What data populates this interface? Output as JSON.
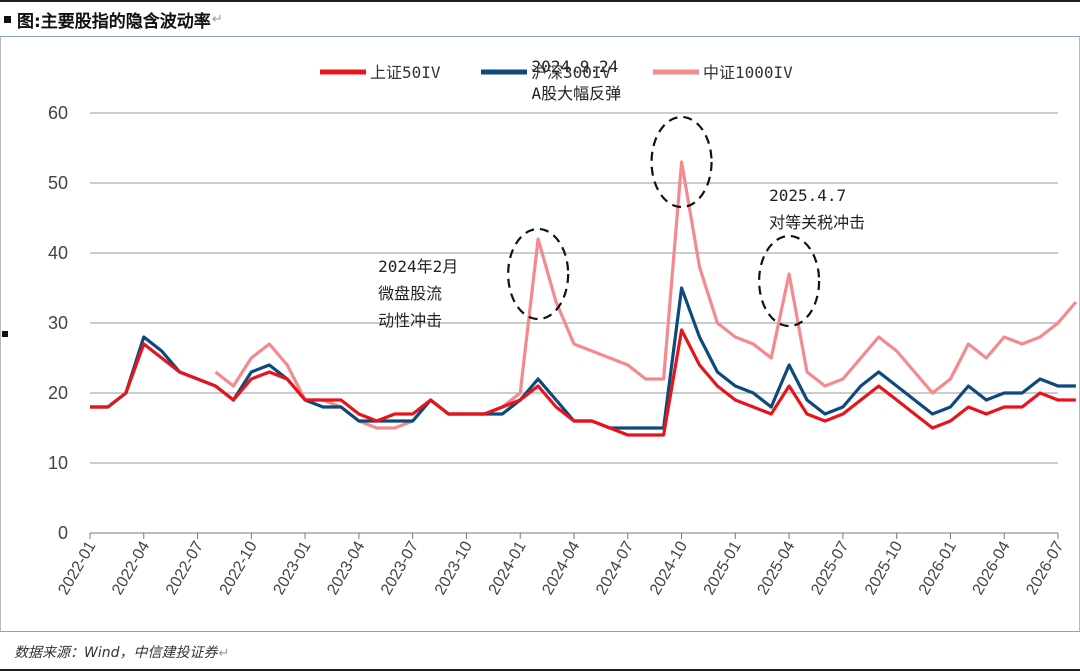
{
  "title": "图:主要股指的隐含波动率",
  "source": "数据来源：Wind，中信建投证券",
  "chart_data": {
    "type": "line",
    "ylim": [
      0,
      60
    ],
    "y_ticks": [
      0,
      10,
      20,
      30,
      40,
      50,
      60
    ],
    "x_tick_labels": [
      "2022-01",
      "2022-04",
      "2022-07",
      "2022-10",
      "2023-01",
      "2023-04",
      "2023-07",
      "2023-10",
      "2024-01",
      "2024-04",
      "2024-07",
      "2024-10",
      "2025-01",
      "2025-04",
      "2025-07",
      "2025-10",
      "2026-01",
      "2026-04",
      "2026-07"
    ],
    "grid": "horizontal",
    "legend_position": "top",
    "series": [
      {
        "name": "上证50IV",
        "color": "#e8141b",
        "width": 3.2,
        "points": [
          [
            "2022-01",
            18
          ],
          [
            "2022-02",
            18
          ],
          [
            "2022-03",
            20
          ],
          [
            "2022-04",
            27
          ],
          [
            "2022-05",
            25
          ],
          [
            "2022-06",
            23
          ],
          [
            "2022-07",
            22
          ],
          [
            "2022-08",
            21
          ],
          [
            "2022-09",
            19
          ],
          [
            "2022-10",
            22
          ],
          [
            "2022-11",
            23
          ],
          [
            "2022-12",
            22
          ],
          [
            "2023-01",
            19
          ],
          [
            "2023-02",
            19
          ],
          [
            "2023-03",
            19
          ],
          [
            "2023-04",
            17
          ],
          [
            "2023-05",
            16
          ],
          [
            "2023-06",
            17
          ],
          [
            "2023-07",
            17
          ],
          [
            "2023-08",
            19
          ],
          [
            "2023-09",
            17
          ],
          [
            "2023-10",
            17
          ],
          [
            "2023-11",
            17
          ],
          [
            "2023-12",
            18
          ],
          [
            "2024-01",
            19
          ],
          [
            "2024-02",
            21
          ],
          [
            "2024-03",
            18
          ],
          [
            "2024-04",
            16
          ],
          [
            "2024-05",
            16
          ],
          [
            "2024-06",
            15
          ],
          [
            "2024-07",
            14
          ],
          [
            "2024-08",
            14
          ],
          [
            "2024-09",
            14
          ],
          [
            "2024-10",
            29
          ],
          [
            "2024-11",
            24
          ],
          [
            "2024-12",
            21
          ],
          [
            "2025-01",
            19
          ],
          [
            "2025-02",
            18
          ],
          [
            "2025-03",
            17
          ],
          [
            "2025-04",
            21
          ],
          [
            "2025-05",
            17
          ],
          [
            "2025-06",
            16
          ],
          [
            "2025-07",
            17
          ],
          [
            "2025-08",
            19
          ],
          [
            "2025-09",
            21
          ],
          [
            "2025-10",
            19
          ],
          [
            "2025-11",
            17
          ],
          [
            "2025-12",
            15
          ],
          [
            "2026-01",
            16
          ],
          [
            "2026-02",
            18
          ],
          [
            "2026-03",
            17
          ],
          [
            "2026-04",
            18
          ],
          [
            "2026-05",
            18
          ],
          [
            "2026-06",
            20
          ],
          [
            "2026-07",
            19
          ],
          [
            "2026-08",
            19
          ]
        ]
      },
      {
        "name": "沪深300IV",
        "color": "#0d4a7c",
        "width": 3.2,
        "points": [
          [
            "2022-01",
            18
          ],
          [
            "2022-02",
            18
          ],
          [
            "2022-03",
            20
          ],
          [
            "2022-04",
            28
          ],
          [
            "2022-05",
            26
          ],
          [
            "2022-06",
            23
          ],
          [
            "2022-07",
            22
          ],
          [
            "2022-08",
            21
          ],
          [
            "2022-09",
            19
          ],
          [
            "2022-10",
            23
          ],
          [
            "2022-11",
            24
          ],
          [
            "2022-12",
            22
          ],
          [
            "2023-01",
            19
          ],
          [
            "2023-02",
            18
          ],
          [
            "2023-03",
            18
          ],
          [
            "2023-04",
            16
          ],
          [
            "2023-05",
            16
          ],
          [
            "2023-06",
            16
          ],
          [
            "2023-07",
            16
          ],
          [
            "2023-08",
            19
          ],
          [
            "2023-09",
            17
          ],
          [
            "2023-10",
            17
          ],
          [
            "2023-11",
            17
          ],
          [
            "2023-12",
            17
          ],
          [
            "2024-01",
            19
          ],
          [
            "2024-02",
            22
          ],
          [
            "2024-03",
            19
          ],
          [
            "2024-04",
            16
          ],
          [
            "2024-05",
            16
          ],
          [
            "2024-06",
            15
          ],
          [
            "2024-07",
            15
          ],
          [
            "2024-08",
            15
          ],
          [
            "2024-09",
            15
          ],
          [
            "2024-10",
            35
          ],
          [
            "2024-11",
            28
          ],
          [
            "2024-12",
            23
          ],
          [
            "2025-01",
            21
          ],
          [
            "2025-02",
            20
          ],
          [
            "2025-03",
            18
          ],
          [
            "2025-04",
            24
          ],
          [
            "2025-05",
            19
          ],
          [
            "2025-06",
            17
          ],
          [
            "2025-07",
            18
          ],
          [
            "2025-08",
            21
          ],
          [
            "2025-09",
            23
          ],
          [
            "2025-10",
            21
          ],
          [
            "2025-11",
            19
          ],
          [
            "2025-12",
            17
          ],
          [
            "2026-01",
            18
          ],
          [
            "2026-02",
            21
          ],
          [
            "2026-03",
            19
          ],
          [
            "2026-04",
            20
          ],
          [
            "2026-05",
            20
          ],
          [
            "2026-06",
            22
          ],
          [
            "2026-07",
            21
          ],
          [
            "2026-08",
            21
          ]
        ]
      },
      {
        "name": "中证1000IV",
        "color": "#f28a8e",
        "width": 3.2,
        "points": [
          [
            "2022-08",
            23
          ],
          [
            "2022-09",
            21
          ],
          [
            "2022-10",
            25
          ],
          [
            "2022-11",
            27
          ],
          [
            "2022-12",
            24
          ],
          [
            "2023-01",
            19
          ],
          [
            "2023-02",
            19
          ],
          [
            "2023-03",
            18
          ],
          [
            "2023-04",
            16
          ],
          [
            "2023-05",
            15
          ],
          [
            "2023-06",
            15
          ],
          [
            "2023-07",
            16
          ],
          [
            "2023-08",
            19
          ],
          [
            "2023-09",
            17
          ],
          [
            "2023-10",
            17
          ],
          [
            "2023-11",
            17
          ],
          [
            "2023-12",
            18
          ],
          [
            "2024-01",
            20
          ],
          [
            "2024-02",
            42
          ],
          [
            "2024-03",
            33
          ],
          [
            "2024-04",
            27
          ],
          [
            "2024-05",
            26
          ],
          [
            "2024-06",
            25
          ],
          [
            "2024-07",
            24
          ],
          [
            "2024-08",
            22
          ],
          [
            "2024-09",
            22
          ],
          [
            "2024-10",
            53
          ],
          [
            "2024-11",
            38
          ],
          [
            "2024-12",
            30
          ],
          [
            "2025-01",
            28
          ],
          [
            "2025-02",
            27
          ],
          [
            "2025-03",
            25
          ],
          [
            "2025-04",
            37
          ],
          [
            "2025-05",
            23
          ],
          [
            "2025-06",
            21
          ],
          [
            "2025-07",
            22
          ],
          [
            "2025-08",
            25
          ],
          [
            "2025-09",
            28
          ],
          [
            "2025-10",
            26
          ],
          [
            "2025-11",
            23
          ],
          [
            "2025-12",
            20
          ],
          [
            "2026-01",
            22
          ],
          [
            "2026-02",
            27
          ],
          [
            "2026-03",
            25
          ],
          [
            "2026-04",
            28
          ],
          [
            "2026-05",
            27
          ],
          [
            "2026-06",
            28
          ],
          [
            "2026-07",
            30
          ],
          [
            "2026-08",
            33
          ]
        ]
      }
    ],
    "annotations": [
      {
        "lines": [
          "2024年2月",
          "微盘股流",
          "动性冲击"
        ],
        "date": "2024-02",
        "value": 37
      },
      {
        "lines": [
          "2024.9.24",
          "A股大幅反弹"
        ],
        "date": "2024-10",
        "value": 53
      },
      {
        "lines": [
          "2025.4.7",
          "对等关税冲击"
        ],
        "date": "2025-04",
        "value": 36
      }
    ]
  }
}
